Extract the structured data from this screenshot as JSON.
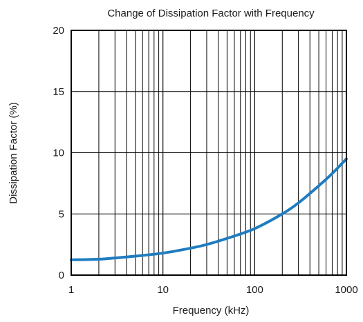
{
  "chart_data": {
    "type": "line",
    "title": "Change of Dissipation Factor with Frequency",
    "xlabel": "Frequency (kHz)",
    "ylabel": "Dissipation Factor (%)",
    "x_scale": "log",
    "xlim": [
      1,
      1000
    ],
    "ylim": [
      0,
      20
    ],
    "x_ticks": [
      1,
      10,
      100,
      1000
    ],
    "x_tick_labels": [
      "1",
      "10",
      "100",
      "1000"
    ],
    "y_ticks": [
      0,
      5,
      10,
      15,
      20
    ],
    "y_tick_labels": [
      "0",
      "5",
      "10",
      "15",
      "20"
    ],
    "grid": true,
    "legend": "none",
    "colors": {
      "curve": "#1f7cc0",
      "grid": "#000000",
      "frame": "#000000"
    },
    "series": [
      {
        "x": [
          1,
          2,
          3,
          5,
          10,
          20,
          30,
          50,
          100,
          200,
          300,
          500,
          700,
          1000
        ],
        "values": [
          1.25,
          1.3,
          1.4,
          1.55,
          1.8,
          2.2,
          2.5,
          3.0,
          3.8,
          5.0,
          5.9,
          7.3,
          8.3,
          9.5
        ]
      }
    ]
  }
}
